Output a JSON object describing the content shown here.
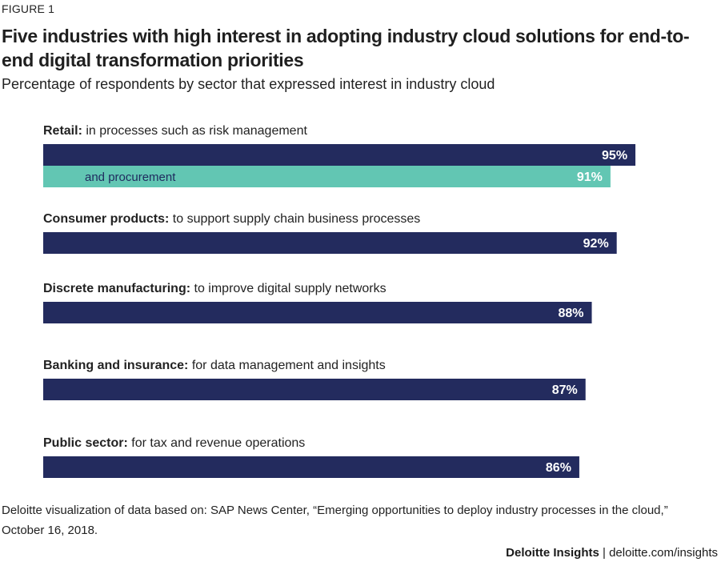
{
  "figure_label": "FIGURE 1",
  "footer": {
    "brand": "Deloitte Insights",
    "separator": "|",
    "url": "deloitte.com/insights"
  },
  "source_note": "Deloitte visualization of data based on: SAP News Center, “Emerging opportunities to deploy industry processes in the cloud,” October 16, 2018.",
  "colors": {
    "primary_bar": "#232b5e",
    "secondary_bar": "#62c6b3",
    "value_text": "#ffffff",
    "inner_label_text": "#1f2a5e"
  },
  "chart_data": {
    "type": "bar",
    "orientation": "horizontal",
    "title": "Five industries with high interest in adopting industry cloud solutions for end-to-end digital transformation priorities",
    "subtitle": "Percentage of respondents by sector that expressed interest in industry cloud",
    "unit": "%",
    "xlim": [
      0,
      100
    ],
    "groups": [
      {
        "sector": "Retail:",
        "description": "in processes such as risk management",
        "bars": [
          {
            "label": "",
            "value": 95,
            "display": "95%",
            "color": "primary"
          },
          {
            "label": "and procurement",
            "value": 91,
            "display": "91%",
            "color": "secondary"
          }
        ]
      },
      {
        "sector": "Consumer products:",
        "description": "to support supply chain business processes",
        "bars": [
          {
            "label": "",
            "value": 92,
            "display": "92%",
            "color": "primary"
          }
        ]
      },
      {
        "sector": "Discrete manufacturing:",
        "description": "to improve digital supply networks",
        "bars": [
          {
            "label": "",
            "value": 88,
            "display": "88%",
            "color": "primary"
          }
        ]
      },
      {
        "sector": "Banking and insurance:",
        "description": "for data management and insights",
        "bars": [
          {
            "label": "",
            "value": 87,
            "display": "87%",
            "color": "primary"
          }
        ]
      },
      {
        "sector": "Public sector:",
        "description": "for tax and revenue operations",
        "bars": [
          {
            "label": "",
            "value": 86,
            "display": "86%",
            "color": "primary"
          }
        ]
      }
    ]
  }
}
